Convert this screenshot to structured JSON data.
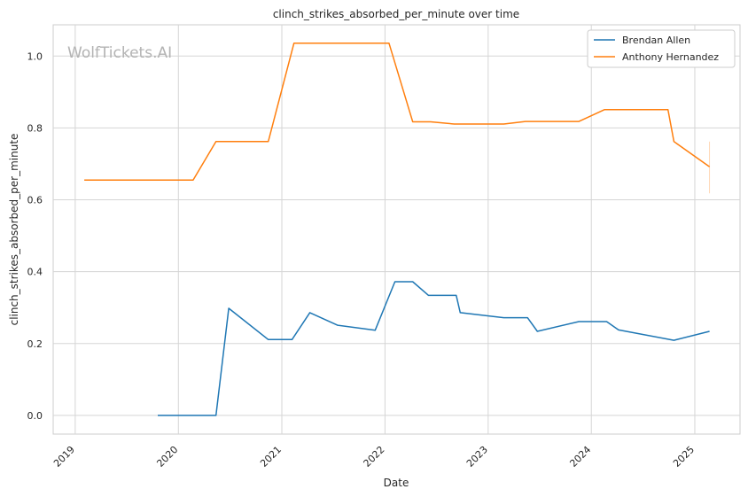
{
  "chart_data": {
    "type": "line",
    "title": "clinch_strikes_absorbed_per_minute over time",
    "xlabel": "Date",
    "ylabel": "clinch_strikes_absorbed_per_minute",
    "watermark": "WolfTickets.AI",
    "xlim": [
      "2018-10-15",
      "2025-06-10"
    ],
    "ylim": [
      -0.052,
      1.087
    ],
    "x_ticks": [
      "2019",
      "2020",
      "2021",
      "2022",
      "2023",
      "2024",
      "2025"
    ],
    "x_tick_dates": [
      "2019-01-01",
      "2020-01-01",
      "2021-01-01",
      "2022-01-01",
      "2023-01-01",
      "2024-01-01",
      "2025-01-01"
    ],
    "y_ticks": [
      "0.0",
      "0.2",
      "0.4",
      "0.6",
      "0.8",
      "1.0"
    ],
    "y_tick_values": [
      0.0,
      0.2,
      0.4,
      0.6,
      0.8,
      1.0
    ],
    "grid": true,
    "legend_position": "top-right",
    "series": [
      {
        "name": "Brendan Allen",
        "color": "#1f77b4",
        "points": [
          [
            "2019-10-20",
            0.0
          ],
          [
            "2020-05-13",
            0.0
          ],
          [
            "2020-06-27",
            0.298
          ],
          [
            "2020-11-14",
            0.211
          ],
          [
            "2021-02-06",
            0.211
          ],
          [
            "2021-04-10",
            0.286
          ],
          [
            "2021-07-17",
            0.251
          ],
          [
            "2021-11-27",
            0.237
          ],
          [
            "2022-02-05",
            0.372
          ],
          [
            "2022-04-09",
            0.372
          ],
          [
            "2022-06-04",
            0.334
          ],
          [
            "2022-09-10",
            0.334
          ],
          [
            "2022-09-24",
            0.286
          ],
          [
            "2023-02-25",
            0.272
          ],
          [
            "2023-05-20",
            0.272
          ],
          [
            "2023-06-24",
            0.234
          ],
          [
            "2023-11-18",
            0.261
          ],
          [
            "2024-02-24",
            0.261
          ],
          [
            "2024-04-06",
            0.238
          ],
          [
            "2024-10-19",
            0.209
          ],
          [
            "2025-02-22",
            0.234
          ]
        ]
      },
      {
        "name": "Anthony Hernandez",
        "color": "#ff7f0e",
        "points": [
          [
            "2019-02-02",
            0.655
          ],
          [
            "2020-02-22",
            0.655
          ],
          [
            "2020-05-13",
            0.762
          ],
          [
            "2020-11-14",
            0.762
          ],
          [
            "2021-02-13",
            1.036
          ],
          [
            "2022-01-15",
            1.036
          ],
          [
            "2022-04-09",
            0.817
          ],
          [
            "2022-06-11",
            0.817
          ],
          [
            "2022-09-03",
            0.811
          ],
          [
            "2023-02-25",
            0.811
          ],
          [
            "2023-05-13",
            0.818
          ],
          [
            "2023-11-18",
            0.818
          ],
          [
            "2024-02-17",
            0.851
          ],
          [
            "2024-09-28",
            0.851
          ],
          [
            "2024-10-19",
            0.762
          ],
          [
            "2025-02-22",
            0.692
          ]
        ],
        "error_bar": {
          "date": "2025-02-22",
          "low": 0.618,
          "high": 0.762
        }
      }
    ]
  }
}
